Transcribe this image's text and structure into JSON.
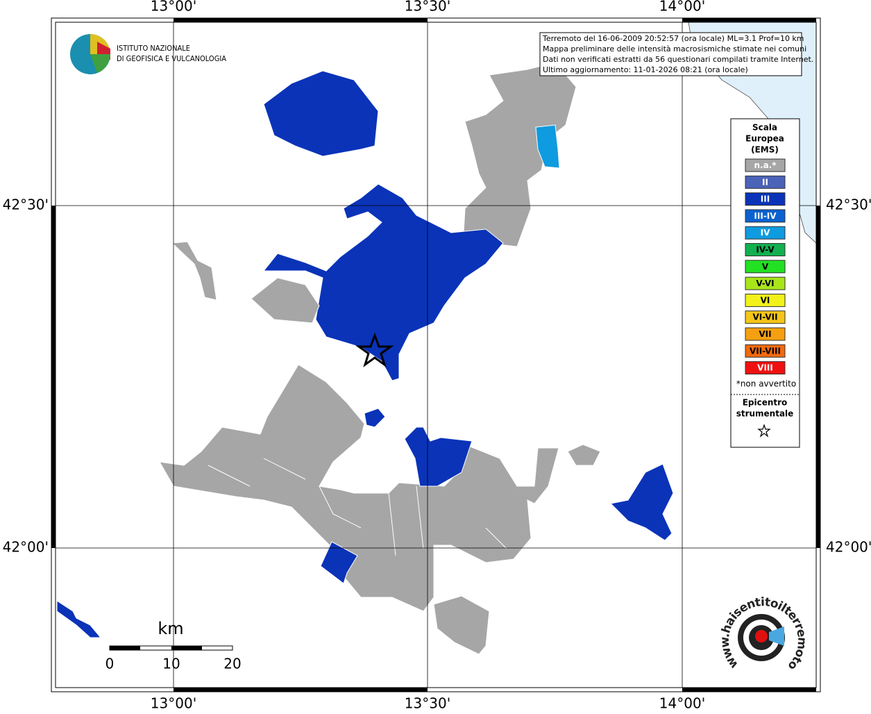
{
  "map": {
    "lon_labels": [
      "13°00'",
      "13°30'",
      "14°00'"
    ],
    "lat_labels": [
      "42°30'",
      "42°00'"
    ]
  },
  "logo": {
    "lines": [
      "ISTITUTO NAZIONALE",
      "DI GEOFISICA E VULCANOLOGIA"
    ]
  },
  "info": {
    "lines": [
      "Terremoto del 16-06-2009 20:52:57 (ora locale) ML=3.1 Prof=10 km",
      "Mappa preliminare delle intensità macrosismiche stimate nei comuni",
      "Dati non verificati estratti da 56 questionari compilati tramite Internet.",
      "Ultimo aggiornamento: 11-01-2026 08:21 (ora locale)"
    ]
  },
  "legend": {
    "title": [
      "Scala",
      "Europea",
      "(EMS)"
    ],
    "items": [
      {
        "label": "n.a.*",
        "color": "#a6a6a6"
      },
      {
        "label": "II",
        "color": "#4a62b8"
      },
      {
        "label": "III",
        "color": "#0a33b8"
      },
      {
        "label": "III-IV",
        "color": "#0a62d0"
      },
      {
        "label": "IV",
        "color": "#0f9be0"
      },
      {
        "label": "IV-V",
        "color": "#12b050"
      },
      {
        "label": "V",
        "color": "#22e022"
      },
      {
        "label": "V-VI",
        "color": "#a8e61a"
      },
      {
        "label": "VI",
        "color": "#f2f21a"
      },
      {
        "label": "VI-VII",
        "color": "#f5c518"
      },
      {
        "label": "VII",
        "color": "#f5a010"
      },
      {
        "label": "VII-VIII",
        "color": "#f06a10"
      },
      {
        "label": "VIII",
        "color": "#f01010"
      }
    ],
    "note": "*non avvertito",
    "epicenter": [
      "Epicentro",
      "strumentale"
    ]
  },
  "scalebar": {
    "unit": "km",
    "labels": [
      "0",
      "10",
      "20"
    ]
  },
  "badge": {
    "text": "www.haisentitoilterremoto.it"
  }
}
